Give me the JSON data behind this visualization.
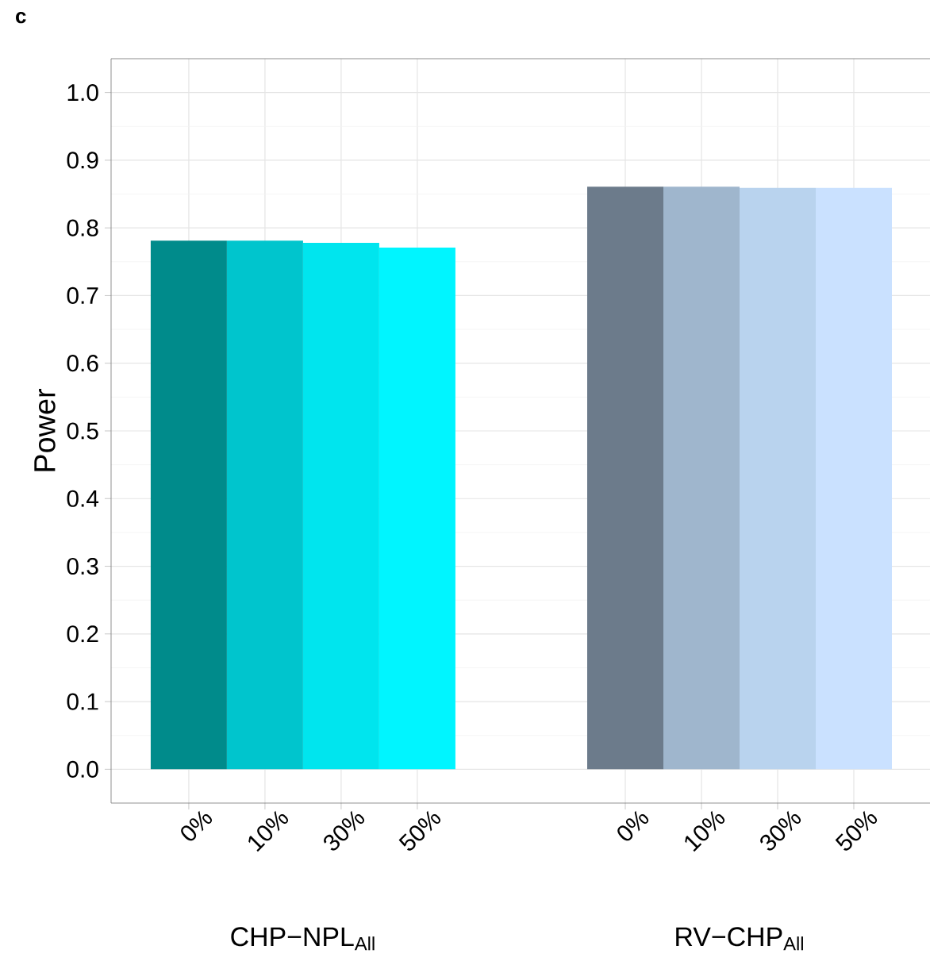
{
  "chart_data": {
    "type": "bar",
    "title": "c",
    "ylabel": "Power",
    "categories": [
      "0%",
      "10%",
      "30%",
      "50%",
      "0%",
      "10%",
      "30%",
      "50%"
    ],
    "values": [
      0.781,
      0.781,
      0.778,
      0.771,
      0.861,
      0.861,
      0.859,
      0.859
    ],
    "colors": [
      "#008b8b",
      "#00c5cd",
      "#00e5ee",
      "#00f5ff",
      "#6c7b8b",
      "#9fb6cd",
      "#b9d3ee",
      "#cae1ff"
    ],
    "annotations": [
      "CHP−NPL$_{All}$",
      "RV−CHP$_{All}$"
    ],
    "ylim": [
      -0.05,
      1.05
    ],
    "yticks": [
      {
        "value": 0,
        "label": "0.0"
      },
      {
        "value": 0.1,
        "label": "0.1"
      },
      {
        "value": 0.2,
        "label": "0.2"
      },
      {
        "value": 0.3,
        "label": "0.3"
      },
      {
        "value": 0.4,
        "label": "0.4"
      },
      {
        "value": 0.5,
        "label": "0.5"
      },
      {
        "value": 0.6,
        "label": "0.6"
      },
      {
        "value": 0.7,
        "label": "0.7"
      },
      {
        "value": 0.8,
        "label": "0.8"
      },
      {
        "value": 0.9,
        "label": "0.9"
      },
      {
        "value": 1.0,
        "label": "1.0"
      }
    ],
    "grid": true
  }
}
